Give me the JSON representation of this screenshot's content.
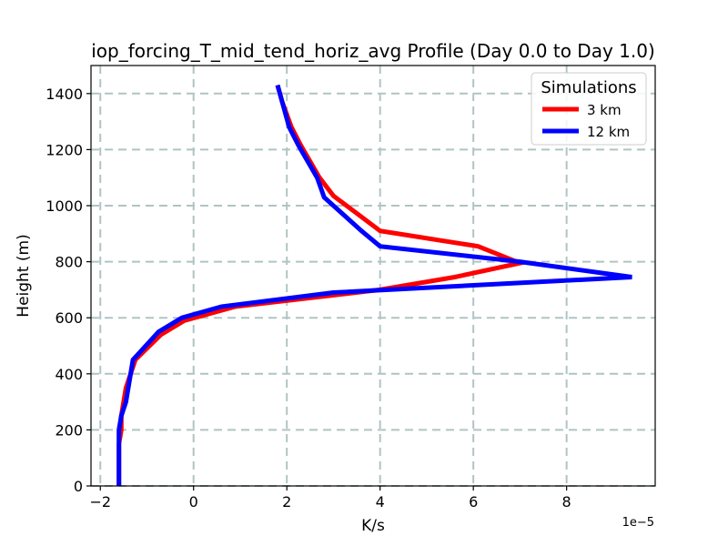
{
  "chart_data": {
    "type": "line",
    "title": "iop_forcing_T_mid_tend_horiz_avg Profile (Day 0.0 to Day 1.0)",
    "xlabel": "K/s",
    "ylabel": "Height (m)",
    "x_offset_label": "1e−5",
    "xlim": [
      -2.2,
      9.9
    ],
    "ylim": [
      0,
      1500
    ],
    "x_ticks": [
      -2,
      0,
      2,
      4,
      6,
      8
    ],
    "x_tick_labels": [
      "−2",
      "0",
      "2",
      "4",
      "6",
      "8"
    ],
    "y_ticks": [
      0,
      200,
      400,
      600,
      800,
      1000,
      1200,
      1400
    ],
    "y_tick_labels": [
      "0",
      "200",
      "400",
      "600",
      "800",
      "1000",
      "1200",
      "1400"
    ],
    "grid": true,
    "legend": {
      "title": "Simulations",
      "position": "top-right"
    },
    "series": [
      {
        "name": "3 km",
        "color": "#ff0000",
        "x": [
          -1.6,
          -1.6,
          -1.6,
          -1.6,
          -1.55,
          -1.55,
          -1.45,
          -1.25,
          -0.7,
          -0.2,
          0.9,
          4.0,
          5.6,
          7.0,
          6.1,
          4.0,
          3.0,
          2.7,
          2.3,
          2.1,
          1.9,
          1.8
        ],
        "y": [
          0,
          50,
          100,
          150,
          200,
          250,
          350,
          450,
          540,
          590,
          640,
          700,
          745,
          795,
          855,
          910,
          1035,
          1100,
          1215,
          1280,
          1370,
          1430
        ]
      },
      {
        "name": "12 km",
        "color": "#0000ff",
        "x": [
          -1.6,
          -1.6,
          -1.6,
          -1.6,
          -1.6,
          -1.55,
          -1.45,
          -1.3,
          -0.75,
          -0.25,
          0.6,
          3.0,
          9.4,
          7.0,
          4.0,
          3.6,
          2.8,
          2.65,
          2.25,
          2.05,
          1.9,
          1.8
        ],
        "y": [
          0,
          50,
          100,
          150,
          200,
          250,
          300,
          450,
          550,
          600,
          640,
          690,
          745,
          800,
          855,
          910,
          1030,
          1100,
          1215,
          1280,
          1370,
          1430
        ]
      }
    ]
  }
}
